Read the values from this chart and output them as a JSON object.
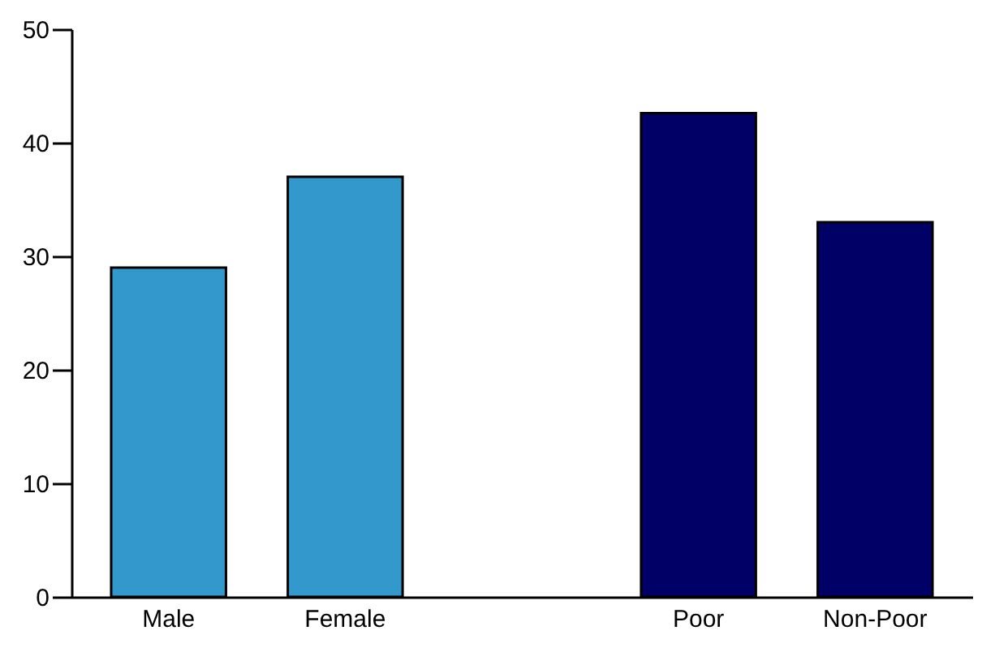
{
  "chart_data": {
    "type": "bar",
    "categories": [
      "Male",
      "Female",
      null,
      "Poor",
      "Non-Poor"
    ],
    "values": [
      29,
      37,
      null,
      42.6,
      33
    ],
    "colors": [
      "#3399cc",
      "#3399cc",
      "#3399cc",
      "#000066",
      "#000066"
    ],
    "ylim": [
      0,
      50
    ],
    "yticks": [
      0,
      10,
      20,
      30,
      40,
      50
    ],
    "grid": false
  }
}
